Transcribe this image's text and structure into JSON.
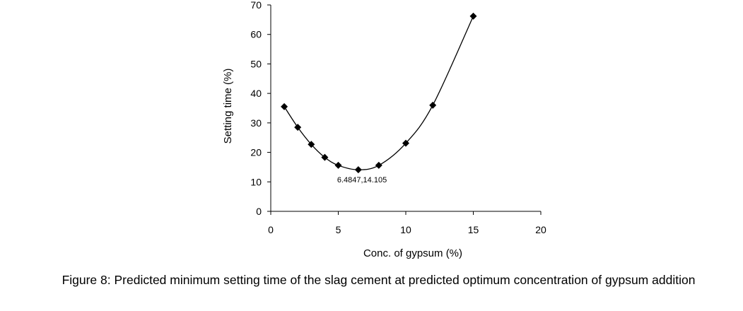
{
  "chart_data": {
    "type": "scatter",
    "title": "",
    "xlabel": "Conc. of gypsum (%)",
    "ylabel": "Setting time (%)",
    "xlim": [
      0,
      20
    ],
    "ylim": [
      0,
      70
    ],
    "x_ticks": [
      0,
      5,
      10,
      15,
      20
    ],
    "y_ticks": [
      0,
      10,
      20,
      30,
      40,
      50,
      60,
      70
    ],
    "grid": false,
    "legend": "none",
    "series": [
      {
        "marker": "diamond",
        "line": "smooth",
        "color": "#000000",
        "points": [
          {
            "x": 1,
            "y": 35.5
          },
          {
            "x": 2,
            "y": 28.5
          },
          {
            "x": 3,
            "y": 22.7
          },
          {
            "x": 4,
            "y": 18.3
          },
          {
            "x": 5,
            "y": 15.6
          },
          {
            "x": 6.4847,
            "y": 14.105
          },
          {
            "x": 8,
            "y": 15.6
          },
          {
            "x": 10,
            "y": 23.1
          },
          {
            "x": 12,
            "y": 36.0
          },
          {
            "x": 15,
            "y": 66.2
          }
        ]
      }
    ],
    "annotations": [
      {
        "text": "6.4847,14.105",
        "x": 6.4847,
        "y": 14.105
      }
    ]
  },
  "caption": "Figure 8: Predicted minimum setting time of the slag cement at predicted optimum concentration of gypsum addition"
}
